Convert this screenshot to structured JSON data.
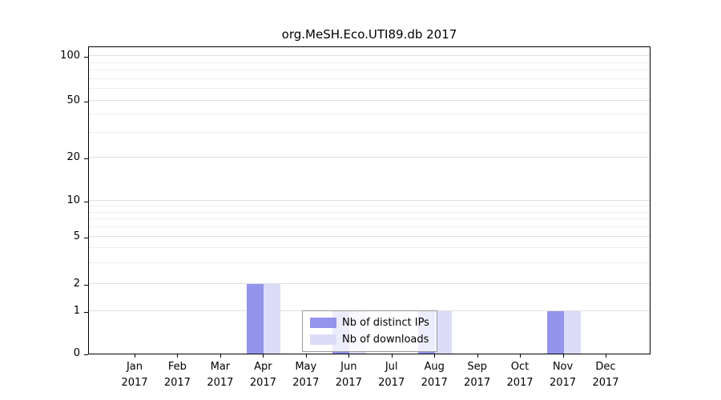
{
  "figure": {
    "title": "org.MeSH.Eco.UTI89.db 2017"
  },
  "chart_data": {
    "type": "bar",
    "title": "org.MeSH.Eco.UTI89.db 2017",
    "x_categories": [
      "Jan",
      "Feb",
      "Mar",
      "Apr",
      "May",
      "Jun",
      "Jul",
      "Aug",
      "Sep",
      "Oct",
      "Nov",
      "Dec"
    ],
    "x_year": "2017",
    "series": [
      {
        "name": "Nb of distinct IPs",
        "color": "#9494ec",
        "values": [
          0,
          0,
          0,
          2,
          0,
          1,
          0,
          1,
          0,
          0,
          1,
          0
        ]
      },
      {
        "name": "Nb of downloads",
        "color": "#dcdcf9",
        "values": [
          0,
          0,
          0,
          2,
          0,
          1,
          0,
          1,
          0,
          0,
          1,
          0
        ]
      }
    ],
    "yticks": [
      0,
      1,
      2,
      5,
      10,
      20,
      50,
      100
    ],
    "minor_gridline_values": [
      3,
      4,
      6,
      7,
      8,
      9,
      30,
      40,
      60,
      70,
      80,
      90
    ],
    "scale": "log-above-1",
    "ylim": [
      0,
      110
    ],
    "grid": "horizontal",
    "legend": {
      "position": "lower-center-inside",
      "entries": [
        "Nb of distinct IPs",
        "Nb of downloads"
      ]
    }
  }
}
